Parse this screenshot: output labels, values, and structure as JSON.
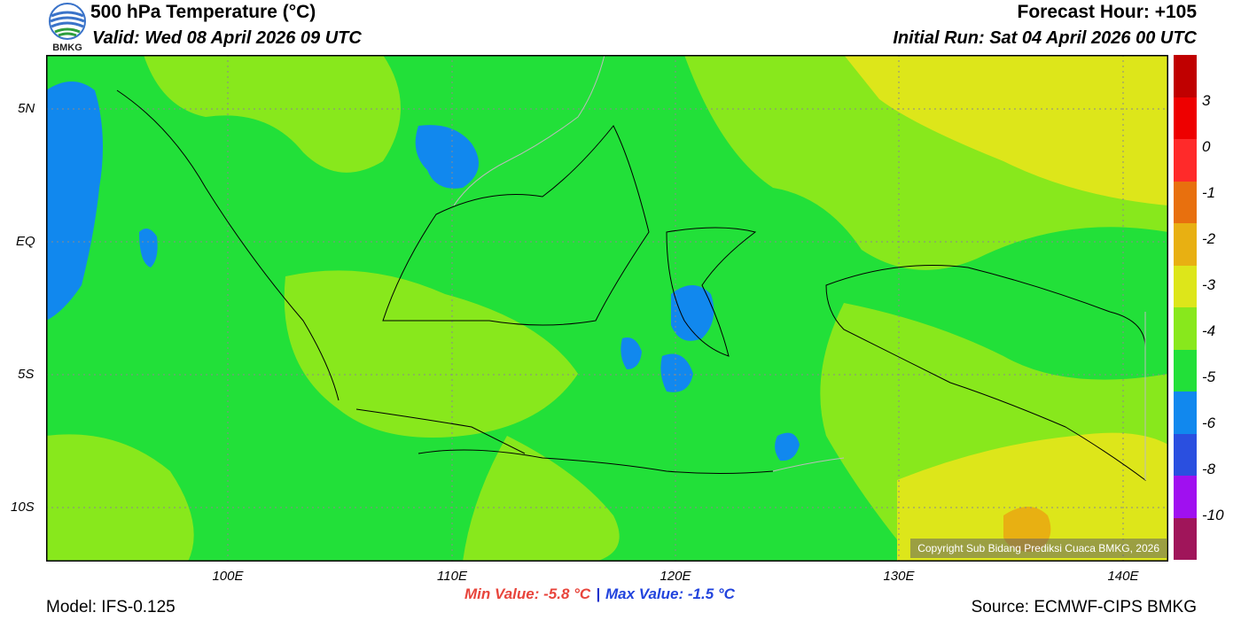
{
  "header": {
    "title": "500 hPa Temperature (°C)",
    "valid": "Valid: Wed 08 April 2026 09 UTC",
    "forecast_hour": "Forecast Hour: +105",
    "initial_run": "Initial Run: Sat 04 April 2026 00 UTC",
    "logo_text": "BMKG"
  },
  "map": {
    "lat_labels": [
      "5N",
      "EQ",
      "5S",
      "10S"
    ],
    "lon_labels": [
      "100E",
      "110E",
      "120E",
      "130E",
      "140E"
    ],
    "background_color": "#22e039",
    "copyright": "Copyright Sub Bidang Prediksi Cuaca BMKG, 2026"
  },
  "colorbar": {
    "labels": [
      "3",
      "0",
      "-1",
      "-2",
      "-3",
      "-4",
      "-5",
      "-6",
      "-8",
      "-10"
    ],
    "colors": [
      "#c00000",
      "#ee0000",
      "#ff2a2a",
      "#e8700e",
      "#e8b012",
      "#dde61a",
      "#88e81c",
      "#22e039",
      "#1188ee",
      "#2a4fe0",
      "#a010f0",
      "#a0155a"
    ]
  },
  "footer": {
    "min_value": "Min Value: -5.8 °C",
    "separator": "|",
    "max_value": "Max Value: -1.5 °C",
    "model": "Model: IFS-0.125",
    "source": "Source: ECMWF-CIPS BMKG"
  }
}
